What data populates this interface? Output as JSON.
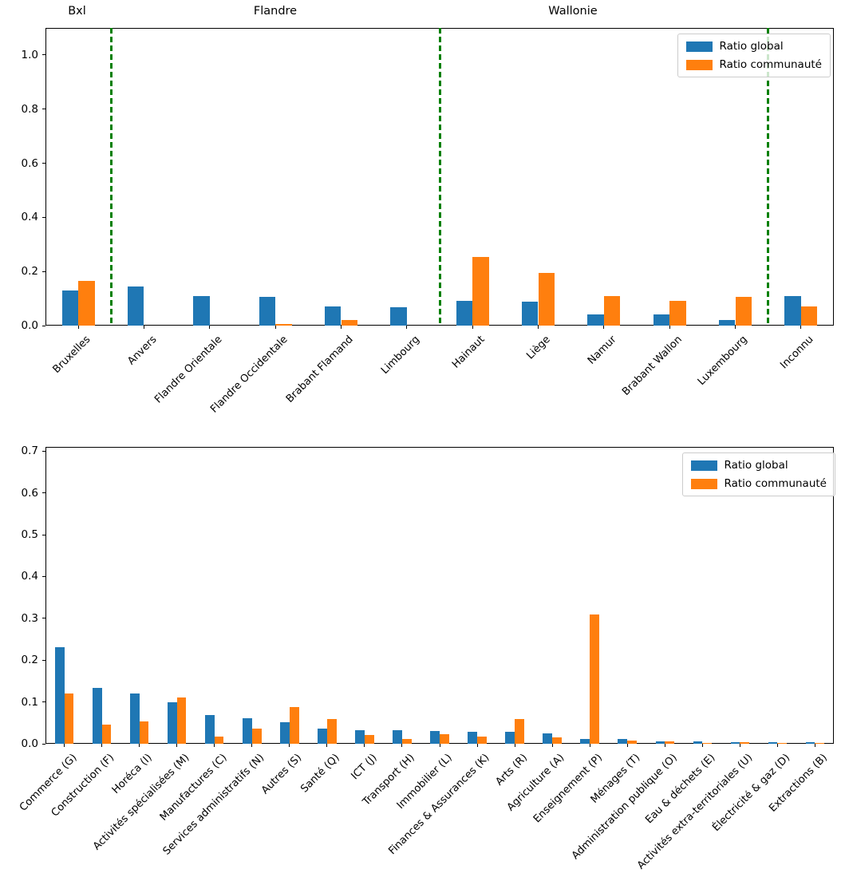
{
  "figure": {
    "background": "#ffffff"
  },
  "colors": {
    "series": [
      "#1f77b4",
      "#ff7f0e"
    ],
    "separator": "#008000",
    "axis": "#000000",
    "legend_border": "#cccccc"
  },
  "legend": {
    "entries": [
      "Ratio global",
      "Ratio communauté"
    ]
  },
  "chart_data": [
    {
      "type": "bar",
      "title": "",
      "xlabel": "",
      "ylabel": "",
      "categories": [
        "Bruxelles",
        "Anvers",
        "Flandre Orientale",
        "Flandre Occidentale",
        "Brabant Flamand",
        "Limbourg",
        "Hainaut",
        "Liège",
        "Namur",
        "Brabant Wallon",
        "Luxembourg",
        "Inconnu"
      ],
      "series": [
        {
          "name": "Ratio global",
          "values": [
            0.13,
            0.145,
            0.11,
            0.105,
            0.072,
            0.068,
            0.092,
            0.087,
            0.04,
            0.04,
            0.022,
            0.11
          ]
        },
        {
          "name": "Ratio communauté",
          "values": [
            0.165,
            0,
            0,
            0.005,
            0.02,
            0,
            0.253,
            0.195,
            0.11,
            0.09,
            0.105,
            0.07
          ]
        }
      ],
      "ylim": [
        0,
        1.1
      ],
      "yticks": [
        0.0,
        0.2,
        0.4,
        0.6,
        0.8,
        1.0
      ],
      "grid": false,
      "legend_position": "upper right",
      "separators": [
        0.5,
        5.5,
        10.5
      ],
      "annotations": [
        {
          "text": "Bxl",
          "x_frac": 0.04
        },
        {
          "text": "Flandre",
          "x_frac": 0.2915
        },
        {
          "text": "Wallonie",
          "x_frac": 0.669
        }
      ]
    },
    {
      "type": "bar",
      "title": "",
      "xlabel": "",
      "ylabel": "",
      "categories": [
        "Commerce (G)",
        "Construction (F)",
        "Horéca (I)",
        "Activités spécialisées (M)",
        "Manufactures (C)",
        "Services administratifs (N)",
        "Autres (S)",
        "Santé (Q)",
        "ICT (J)",
        "Transport (H)",
        "Immobilier (L)",
        "Finances & Assurances (K)",
        "Arts (R)",
        "Agriculture (A)",
        "Enseignement (P)",
        "Ménages (T)",
        "Administration publique (O)",
        "Eau & déchets (E)",
        "Activités extra-territoriales (U)",
        "Électricité & gaz (D)",
        "Extractions (B)"
      ],
      "series": [
        {
          "name": "Ratio global",
          "values": [
            0.23,
            0.133,
            0.121,
            0.1,
            0.069,
            0.061,
            0.051,
            0.036,
            0.033,
            0.033,
            0.03,
            0.028,
            0.028,
            0.024,
            0.011,
            0.011,
            0.006,
            0.005,
            0.003,
            0.003,
            0.003
          ]
        },
        {
          "name": "Ratio communauté",
          "values": [
            0.12,
            0.046,
            0.054,
            0.11,
            0.018,
            0.037,
            0.088,
            0.059,
            0.021,
            0.011,
            0.023,
            0.017,
            0.059,
            0.015,
            0.31,
            0.008,
            0.005,
            0.001,
            0.003,
            0.002,
            0.001
          ]
        }
      ],
      "ylim": [
        0,
        0.71
      ],
      "yticks": [
        0.0,
        0.1,
        0.2,
        0.3,
        0.4,
        0.5,
        0.6,
        0.7
      ],
      "grid": false,
      "legend_position": "upper right",
      "separators": [],
      "annotations": []
    }
  ]
}
